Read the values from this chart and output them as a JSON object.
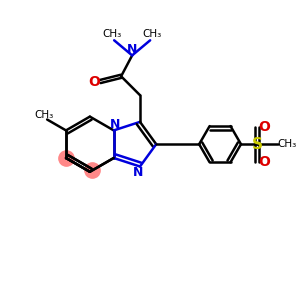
{
  "bg_color": "#ffffff",
  "bond_color": "#000000",
  "blue_color": "#0000dd",
  "red_color": "#dd0000",
  "sulfur_color": "#cccc00",
  "pink_color": "#ff8888",
  "bond_lw": 1.8,
  "dbo": 0.055,
  "xlim": [
    0,
    10
  ],
  "ylim": [
    0,
    10
  ]
}
